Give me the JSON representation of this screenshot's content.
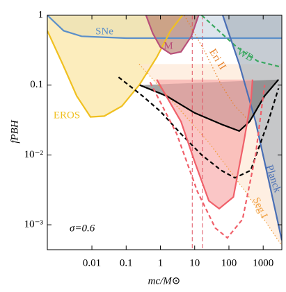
{
  "chart_data": {
    "type": "line",
    "log_x": true,
    "log_y": true,
    "x_label": "mc/M⊙",
    "y_label": "fPBH",
    "annotation": "σ=0.6",
    "xlim": [
      0.0005,
      3500
    ],
    "ylim": [
      0.00044,
      1
    ],
    "xticks": [
      0.01,
      0.1,
      1,
      10,
      100,
      1000
    ],
    "yticks": [
      {
        "value": 0.001,
        "label": "10⁻³"
      },
      {
        "value": 0.01,
        "label": "10⁻²"
      },
      0.1,
      1
    ],
    "vlines": [
      8.5,
      17
    ],
    "vline_color": "#e05060",
    "series": [
      {
        "name": "SNe",
        "color": "#5b8fc9",
        "style": "solid",
        "fill": "#c9d6e2",
        "fill_to": "top",
        "x": [
          0.0005,
          0.0015,
          0.005,
          0.1,
          10,
          3500
        ],
        "values": [
          1,
          0.6,
          0.5,
          0.47,
          0.47,
          0.47
        ]
      },
      {
        "name": "EROS",
        "color": "#f0c020",
        "style": "solid",
        "fill": "#fbe39a",
        "fill_to": "top",
        "x": [
          0.0005,
          0.0014,
          0.0036,
          0.0091,
          0.023,
          0.075,
          0.24,
          0.78,
          1.97,
          4.4
        ],
        "values": [
          0.6,
          0.2,
          0.07,
          0.035,
          0.036,
          0.05,
          0.1,
          0.25,
          0.6,
          1
        ]
      },
      {
        "name": "M",
        "color": "#b8507a",
        "style": "solid",
        "fill": "#b8806e",
        "fill_to": "top",
        "x": [
          0.38,
          0.6,
          1,
          2,
          4,
          8,
          13
        ],
        "values": [
          1,
          0.55,
          0.35,
          0.28,
          0.3,
          0.5,
          1
        ]
      },
      {
        "name": "Eri II",
        "color": "#e8822a",
        "style": "dotted",
        "x": [
          5,
          20,
          60,
          150,
          400
        ],
        "values": [
          1,
          0.3,
          0.1,
          0.05,
          0.03
        ]
      },
      {
        "name": "WB",
        "color": "#3aa860",
        "style": "dashed",
        "x": [
          16,
          50,
          170,
          690,
          3500
        ],
        "values": [
          1,
          0.6,
          0.35,
          0.22,
          0.18
        ]
      },
      {
        "name": "Seg I",
        "color": "#f0a040",
        "style": "dotted",
        "fill": "#fde6d2",
        "fill_to": "right",
        "x": [
          0.24,
          3,
          26,
          300,
          3500
        ],
        "values": [
          0.2,
          0.05,
          0.015,
          0.003,
          0.0005
        ]
      },
      {
        "name": "Planck",
        "color": "#4a6fb5",
        "style": "solid",
        "fill": "#a8b0bc",
        "fill_to": "right",
        "x": [
          66,
          200,
          600,
          1500,
          3500
        ],
        "values": [
          1,
          0.2,
          0.03,
          0.004,
          0.0006
        ]
      },
      {
        "color": "#000000",
        "style": "solid",
        "fill": "#777777",
        "fill_to": "closed",
        "x": [
          0.25,
          1.5,
          10,
          66,
          200,
          400,
          1100,
          2800
        ],
        "values": [
          0.1,
          0.07,
          0.04,
          0.027,
          0.022,
          0.03,
          0.07,
          0.12
        ]
      },
      {
        "color": "#000000",
        "style": "dashed",
        "x": [
          0.06,
          0.3,
          1,
          4,
          16,
          60,
          150,
          430,
          1400,
          2800
        ],
        "values": [
          0.13,
          0.07,
          0.042,
          0.02,
          0.01,
          0.006,
          0.0047,
          0.006,
          0.03,
          0.09
        ]
      },
      {
        "color": "#f0606a",
        "style": "solid",
        "fill": "#f7a8a8",
        "fill_to": "closed",
        "x": [
          0.78,
          4,
          10,
          26,
          52,
          135,
          270,
          440,
          490
        ],
        "values": [
          0.12,
          0.03,
          0.008,
          0.0022,
          0.0017,
          0.0025,
          0.015,
          0.06,
          0.12
        ]
      },
      {
        "color": "#f0606a",
        "style": "dashed",
        "x": [
          0.5,
          3,
          12,
          40,
          90,
          250,
          600,
          1100
        ],
        "values": [
          0.11,
          0.02,
          0.003,
          0.0009,
          0.00065,
          0.0012,
          0.01,
          0.1
        ]
      }
    ]
  }
}
